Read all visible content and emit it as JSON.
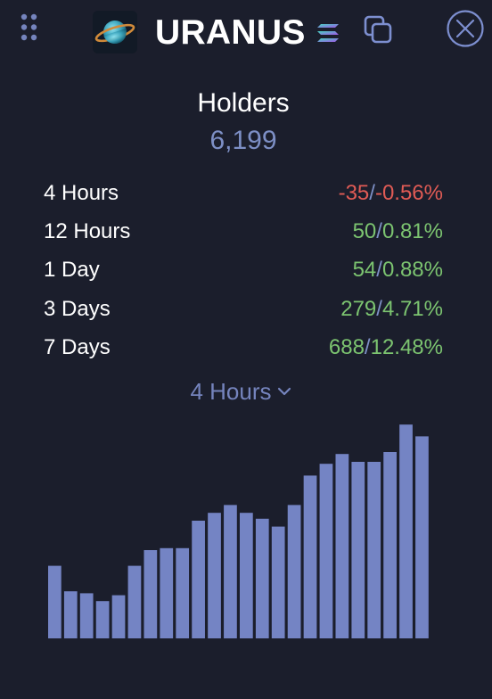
{
  "header": {
    "token_name": "URANUS",
    "icons": {
      "menu": "grip-dots-icon",
      "logo": "planet-icon",
      "chain": "solana-icon",
      "copy": "copy-icon",
      "close": "close-icon"
    }
  },
  "holders": {
    "title": "Holders",
    "count": "6,199"
  },
  "stats": [
    {
      "label": "4 Hours",
      "change": "-35",
      "percent": "-0.56%",
      "direction": "negative"
    },
    {
      "label": "12 Hours",
      "change": "50",
      "percent": "0.81%",
      "direction": "positive"
    },
    {
      "label": "1 Day",
      "change": "54",
      "percent": "0.88%",
      "direction": "positive"
    },
    {
      "label": "3 Days",
      "change": "279",
      "percent": "4.71%",
      "direction": "positive"
    },
    {
      "label": "7 Days",
      "change": "688",
      "percent": "12.48%",
      "direction": "positive"
    }
  ],
  "period_selector": {
    "selected": "4 Hours"
  },
  "colors": {
    "background": "#1b1e2c",
    "accent": "#7d8fc5",
    "negative": "#e05b55",
    "positive": "#7cc470",
    "bar": "#7484c4"
  },
  "chart_data": {
    "type": "bar",
    "values": [
      6227,
      6214,
      6213,
      6209,
      6212,
      6227,
      6235,
      6236,
      6236,
      6250,
      6254,
      6258,
      6254,
      6251,
      6247,
      6258,
      6273,
      6279,
      6284,
      6280,
      6280,
      6285,
      6299,
      6293
    ],
    "ylim": [
      6190,
      6300
    ]
  }
}
